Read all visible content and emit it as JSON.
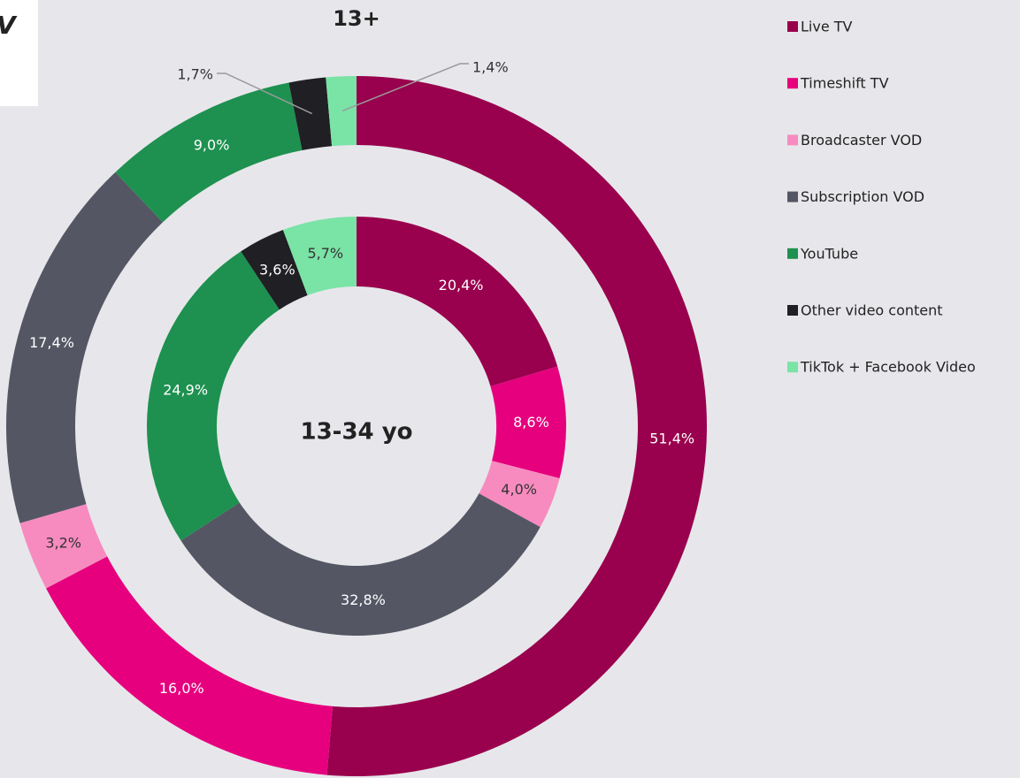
{
  "corner_text": "V",
  "chart_data": {
    "type": "donut",
    "categories": [
      "Live TV",
      "Timeshift TV",
      "Broadcaster VOD",
      "Subscription VOD",
      "YouTube",
      "Other video content",
      "TikTok + Facebook Video"
    ],
    "colors": [
      "#99004d",
      "#e6007e",
      "#f78bbf",
      "#545664",
      "#1e9150",
      "#1f1f24",
      "#7ae3a6"
    ],
    "series": [
      {
        "name": "13+",
        "values": [
          51.4,
          16.0,
          3.2,
          17.4,
          9.0,
          1.7,
          1.4
        ],
        "value_labels": [
          "51,4%",
          "16,0%",
          "3,2%",
          "17,4%",
          "9,0%",
          "1,7%",
          "1,4%"
        ]
      },
      {
        "name": "13-34 yo",
        "values": [
          20.4,
          8.6,
          4.0,
          32.8,
          24.9,
          3.6,
          5.7
        ],
        "value_labels": [
          "20,4%",
          "8,6%",
          "4,0%",
          "32,8%",
          "24,9%",
          "3,6%",
          "5,7%"
        ]
      }
    ],
    "legend": "right"
  }
}
